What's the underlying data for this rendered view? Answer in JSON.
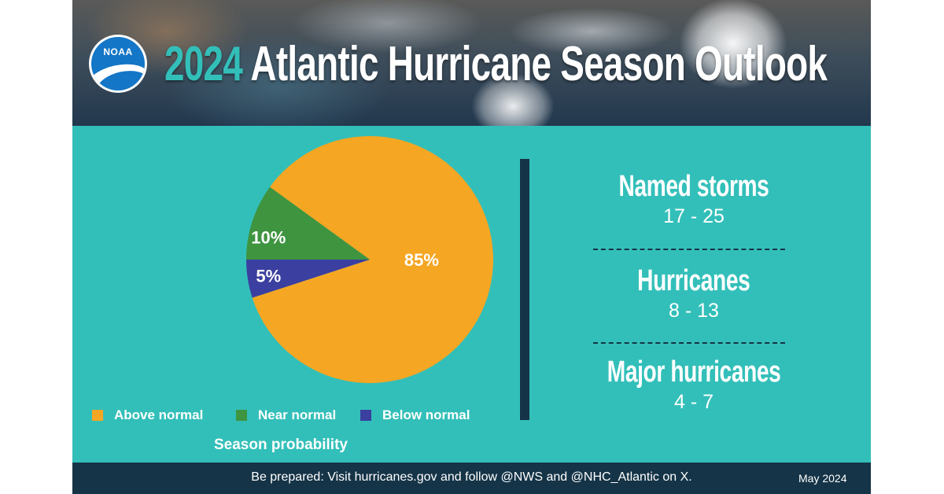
{
  "header": {
    "title_year": "2024",
    "title_rest": "Atlantic Hurricane Season Outlook",
    "logo_text": "NOAA"
  },
  "chart_data": {
    "type": "pie",
    "title": "Season probability",
    "slices": [
      {
        "label": "Above normal",
        "value": 85,
        "display": "85%",
        "color": "#f5a623"
      },
      {
        "label": "Near normal",
        "value": 10,
        "display": "10%",
        "color": "#3e943f"
      },
      {
        "label": "Below normal",
        "value": 5,
        "display": "5%",
        "color": "#3b3fa0"
      }
    ],
    "legend_position": "bottom"
  },
  "stats": [
    {
      "title": "Named storms",
      "value": "17 - 25"
    },
    {
      "title": "Hurricanes",
      "value": "8 - 13"
    },
    {
      "title": "Major hurricanes",
      "value": "4 - 7"
    }
  ],
  "footer": {
    "text": "Be prepared: Visit hurricanes.gov and follow @NWS and @NHC_Atlantic on X.",
    "date": "May 2024"
  },
  "colors": {
    "teal": "#33bfb9",
    "navy": "#153447",
    "orange": "#f5a623",
    "green": "#3e943f",
    "purple": "#3b3fa0"
  }
}
